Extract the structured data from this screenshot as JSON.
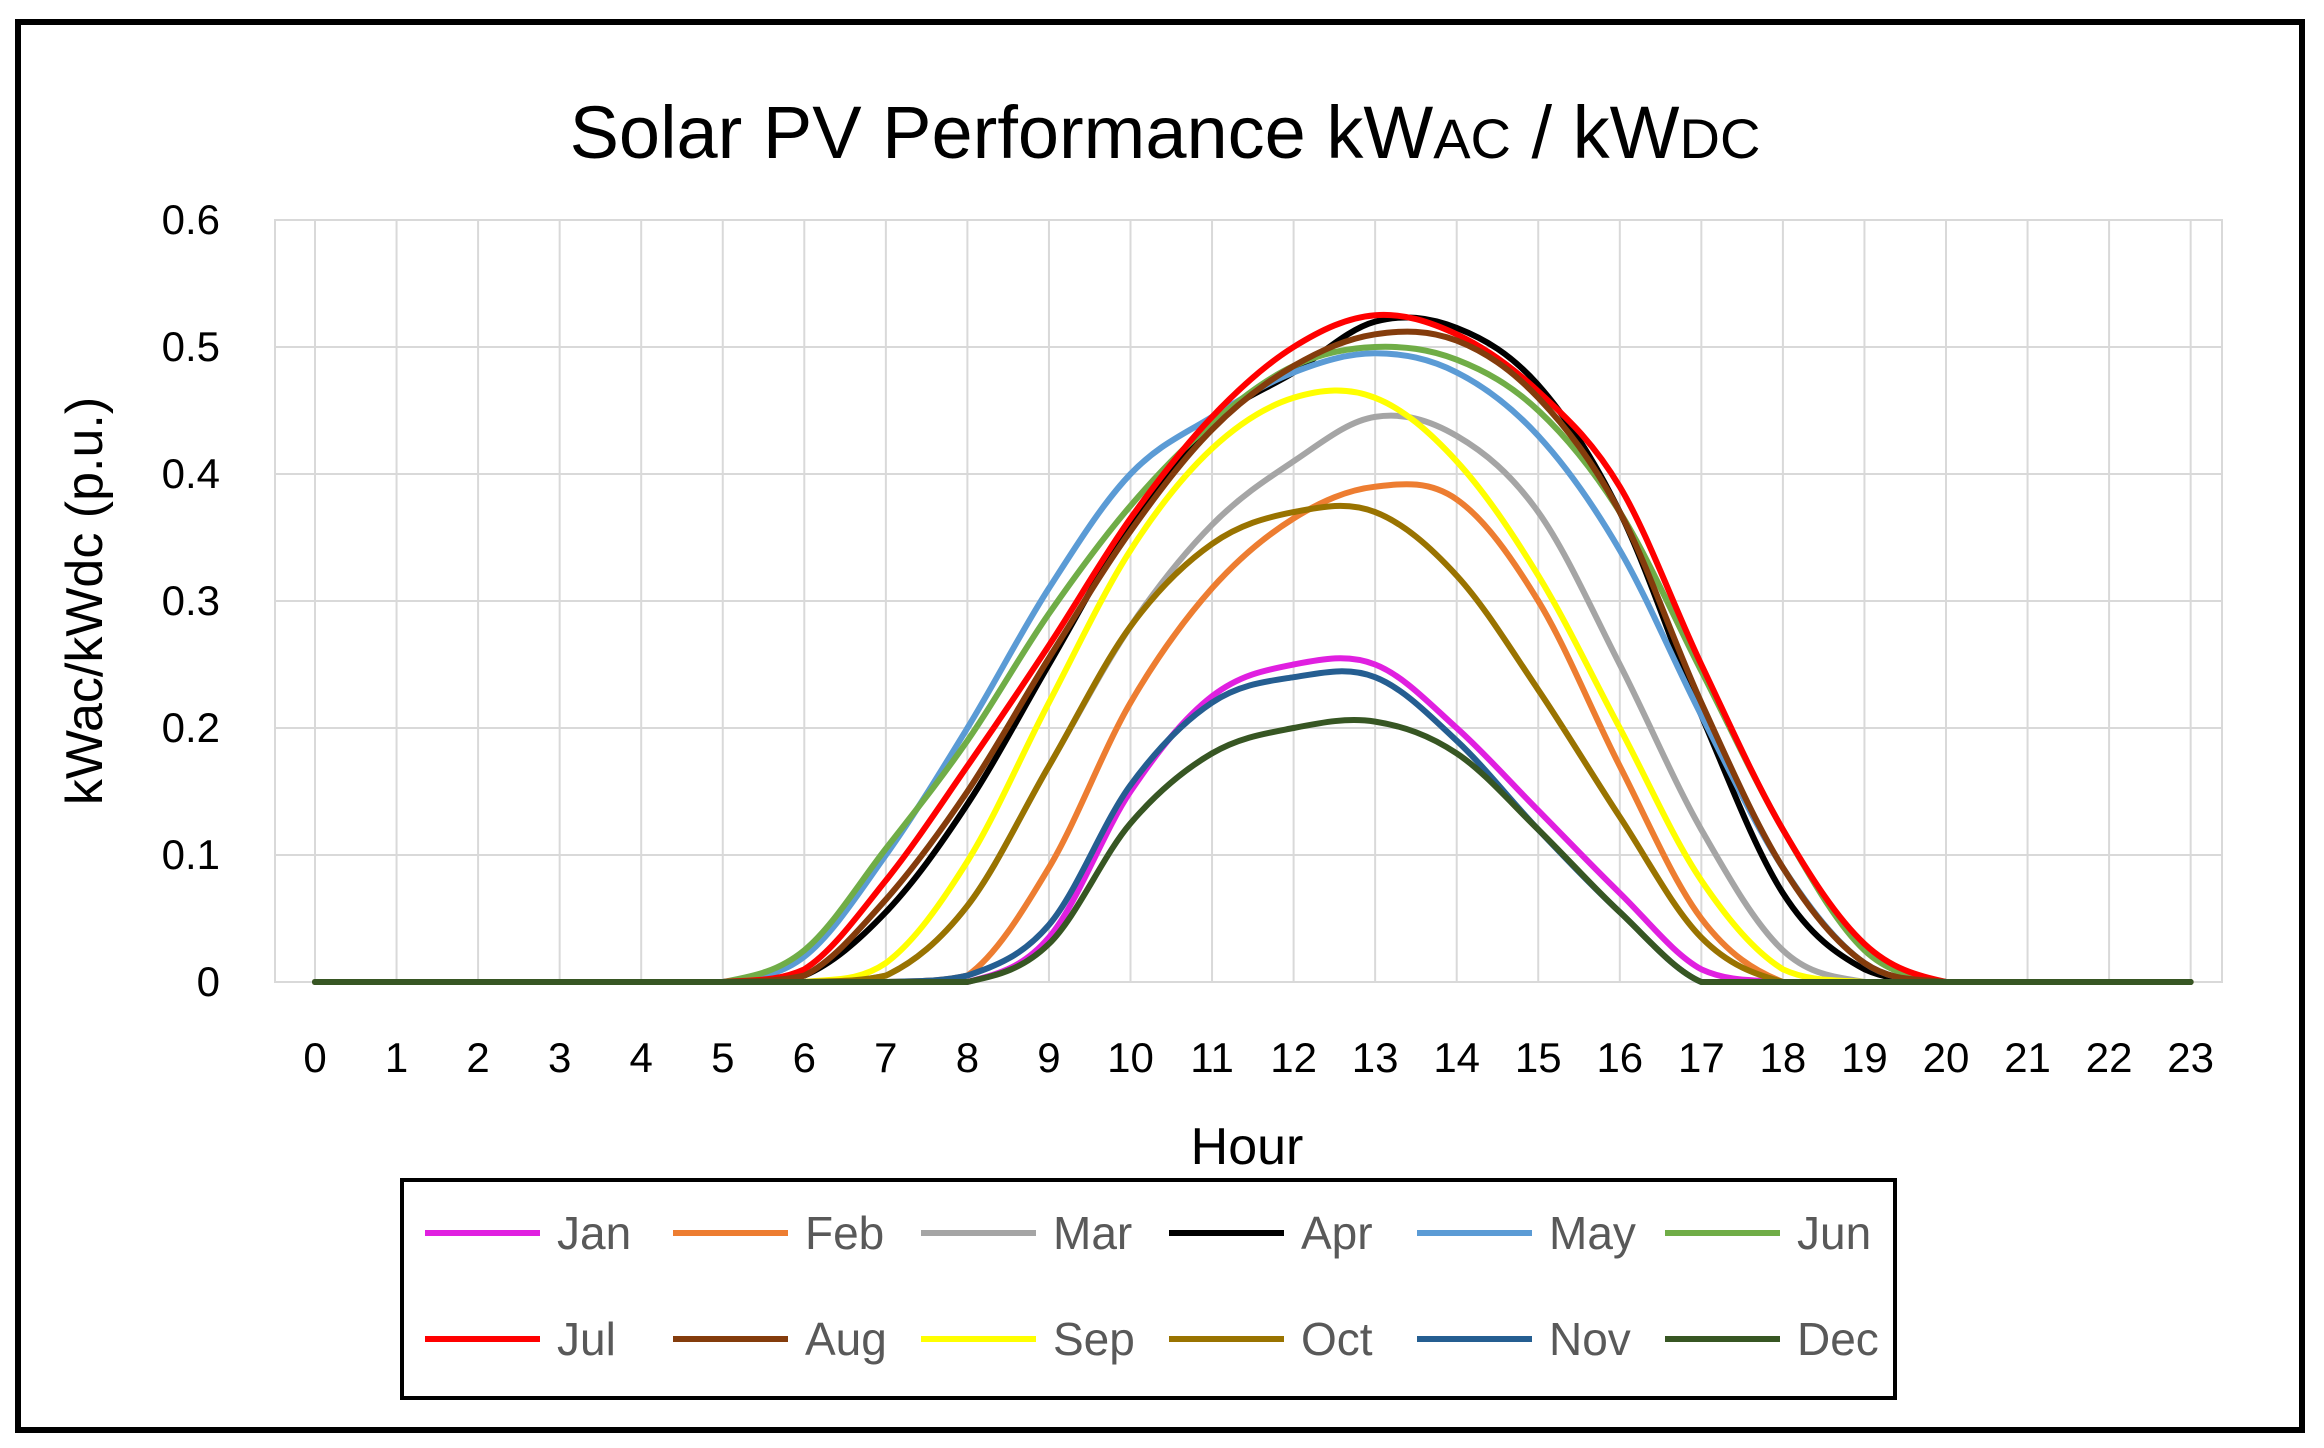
{
  "chart_data": {
    "type": "line",
    "title_main": "Solar PV Performance kW",
    "title_sub1": "AC",
    "title_sep": " / kW",
    "title_sub2": "DC",
    "xlabel": "Hour",
    "ylabel": "kWac/kWdc (p.u.)",
    "x": [
      0,
      1,
      2,
      3,
      4,
      5,
      6,
      7,
      8,
      9,
      10,
      11,
      12,
      13,
      14,
      15,
      16,
      17,
      18,
      19,
      20,
      21,
      22,
      23
    ],
    "ylim": [
      0,
      0.6
    ],
    "yticks": [
      "0",
      "0.1",
      "0.2",
      "0.3",
      "0.4",
      "0.5",
      "0.6"
    ],
    "grid": true,
    "legend_position": "bottom",
    "series": [
      {
        "name": "Jan",
        "color": "#E020E0",
        "values": [
          0,
          0,
          0,
          0,
          0,
          0,
          0,
          0,
          0,
          0.035,
          0.15,
          0.225,
          0.25,
          0.25,
          0.2,
          0.135,
          0.07,
          0.01,
          0,
          0,
          0,
          0,
          0,
          0
        ]
      },
      {
        "name": "Feb",
        "color": "#ED7D31",
        "values": [
          0,
          0,
          0,
          0,
          0,
          0,
          0,
          0,
          0.005,
          0.09,
          0.22,
          0.31,
          0.365,
          0.39,
          0.38,
          0.3,
          0.17,
          0.05,
          0,
          0,
          0,
          0,
          0,
          0
        ]
      },
      {
        "name": "Mar",
        "color": "#A5A5A5",
        "values": [
          0,
          0,
          0,
          0,
          0,
          0,
          0,
          0.005,
          0.06,
          0.17,
          0.28,
          0.36,
          0.41,
          0.445,
          0.43,
          0.37,
          0.25,
          0.12,
          0.025,
          0,
          0,
          0,
          0,
          0
        ]
      },
      {
        "name": "Apr",
        "color": "#000000",
        "values": [
          0,
          0,
          0,
          0,
          0,
          0,
          0.005,
          0.055,
          0.14,
          0.25,
          0.36,
          0.44,
          0.48,
          0.52,
          0.515,
          0.47,
          0.37,
          0.21,
          0.07,
          0.01,
          0,
          0,
          0,
          0
        ]
      },
      {
        "name": "May",
        "color": "#5B9BD5",
        "values": [
          0,
          0,
          0,
          0,
          0,
          0,
          0.02,
          0.1,
          0.2,
          0.31,
          0.4,
          0.445,
          0.48,
          0.495,
          0.48,
          0.43,
          0.34,
          0.21,
          0.09,
          0.015,
          0,
          0,
          0,
          0
        ]
      },
      {
        "name": "Jun",
        "color": "#70AD47",
        "values": [
          0,
          0,
          0,
          0,
          0,
          0,
          0.025,
          0.105,
          0.19,
          0.29,
          0.375,
          0.44,
          0.485,
          0.5,
          0.49,
          0.45,
          0.37,
          0.245,
          0.12,
          0.025,
          0,
          0,
          0,
          0
        ]
      },
      {
        "name": "Jul",
        "color": "#FF0000",
        "values": [
          0,
          0,
          0,
          0,
          0,
          0,
          0.01,
          0.08,
          0.17,
          0.265,
          0.365,
          0.445,
          0.5,
          0.525,
          0.51,
          0.465,
          0.39,
          0.25,
          0.12,
          0.03,
          0,
          0,
          0,
          0
        ]
      },
      {
        "name": "Aug",
        "color": "#843C0C",
        "values": [
          0,
          0,
          0,
          0,
          0,
          0,
          0.005,
          0.065,
          0.15,
          0.255,
          0.355,
          0.435,
          0.485,
          0.51,
          0.505,
          0.46,
          0.37,
          0.22,
          0.09,
          0.015,
          0,
          0,
          0,
          0
        ]
      },
      {
        "name": "Sep",
        "color": "#FFFF00",
        "values": [
          0,
          0,
          0,
          0,
          0,
          0,
          0,
          0.015,
          0.095,
          0.22,
          0.34,
          0.42,
          0.46,
          0.46,
          0.41,
          0.32,
          0.2,
          0.08,
          0.01,
          0,
          0,
          0,
          0,
          0
        ]
      },
      {
        "name": "Oct",
        "color": "#997300",
        "values": [
          0,
          0,
          0,
          0,
          0,
          0,
          0,
          0.005,
          0.06,
          0.17,
          0.28,
          0.345,
          0.37,
          0.37,
          0.32,
          0.23,
          0.13,
          0.035,
          0,
          0,
          0,
          0,
          0,
          0
        ]
      },
      {
        "name": "Nov",
        "color": "#255E91",
        "values": [
          0,
          0,
          0,
          0,
          0,
          0,
          0,
          0,
          0.005,
          0.045,
          0.155,
          0.22,
          0.24,
          0.24,
          0.19,
          0.12,
          0.055,
          0,
          0,
          0,
          0,
          0,
          0,
          0
        ]
      },
      {
        "name": "Dec",
        "color": "#375623",
        "values": [
          0,
          0,
          0,
          0,
          0,
          0,
          0,
          0,
          0,
          0.03,
          0.125,
          0.18,
          0.2,
          0.205,
          0.18,
          0.12,
          0.055,
          0,
          0,
          0,
          0,
          0,
          0,
          0
        ]
      }
    ]
  }
}
